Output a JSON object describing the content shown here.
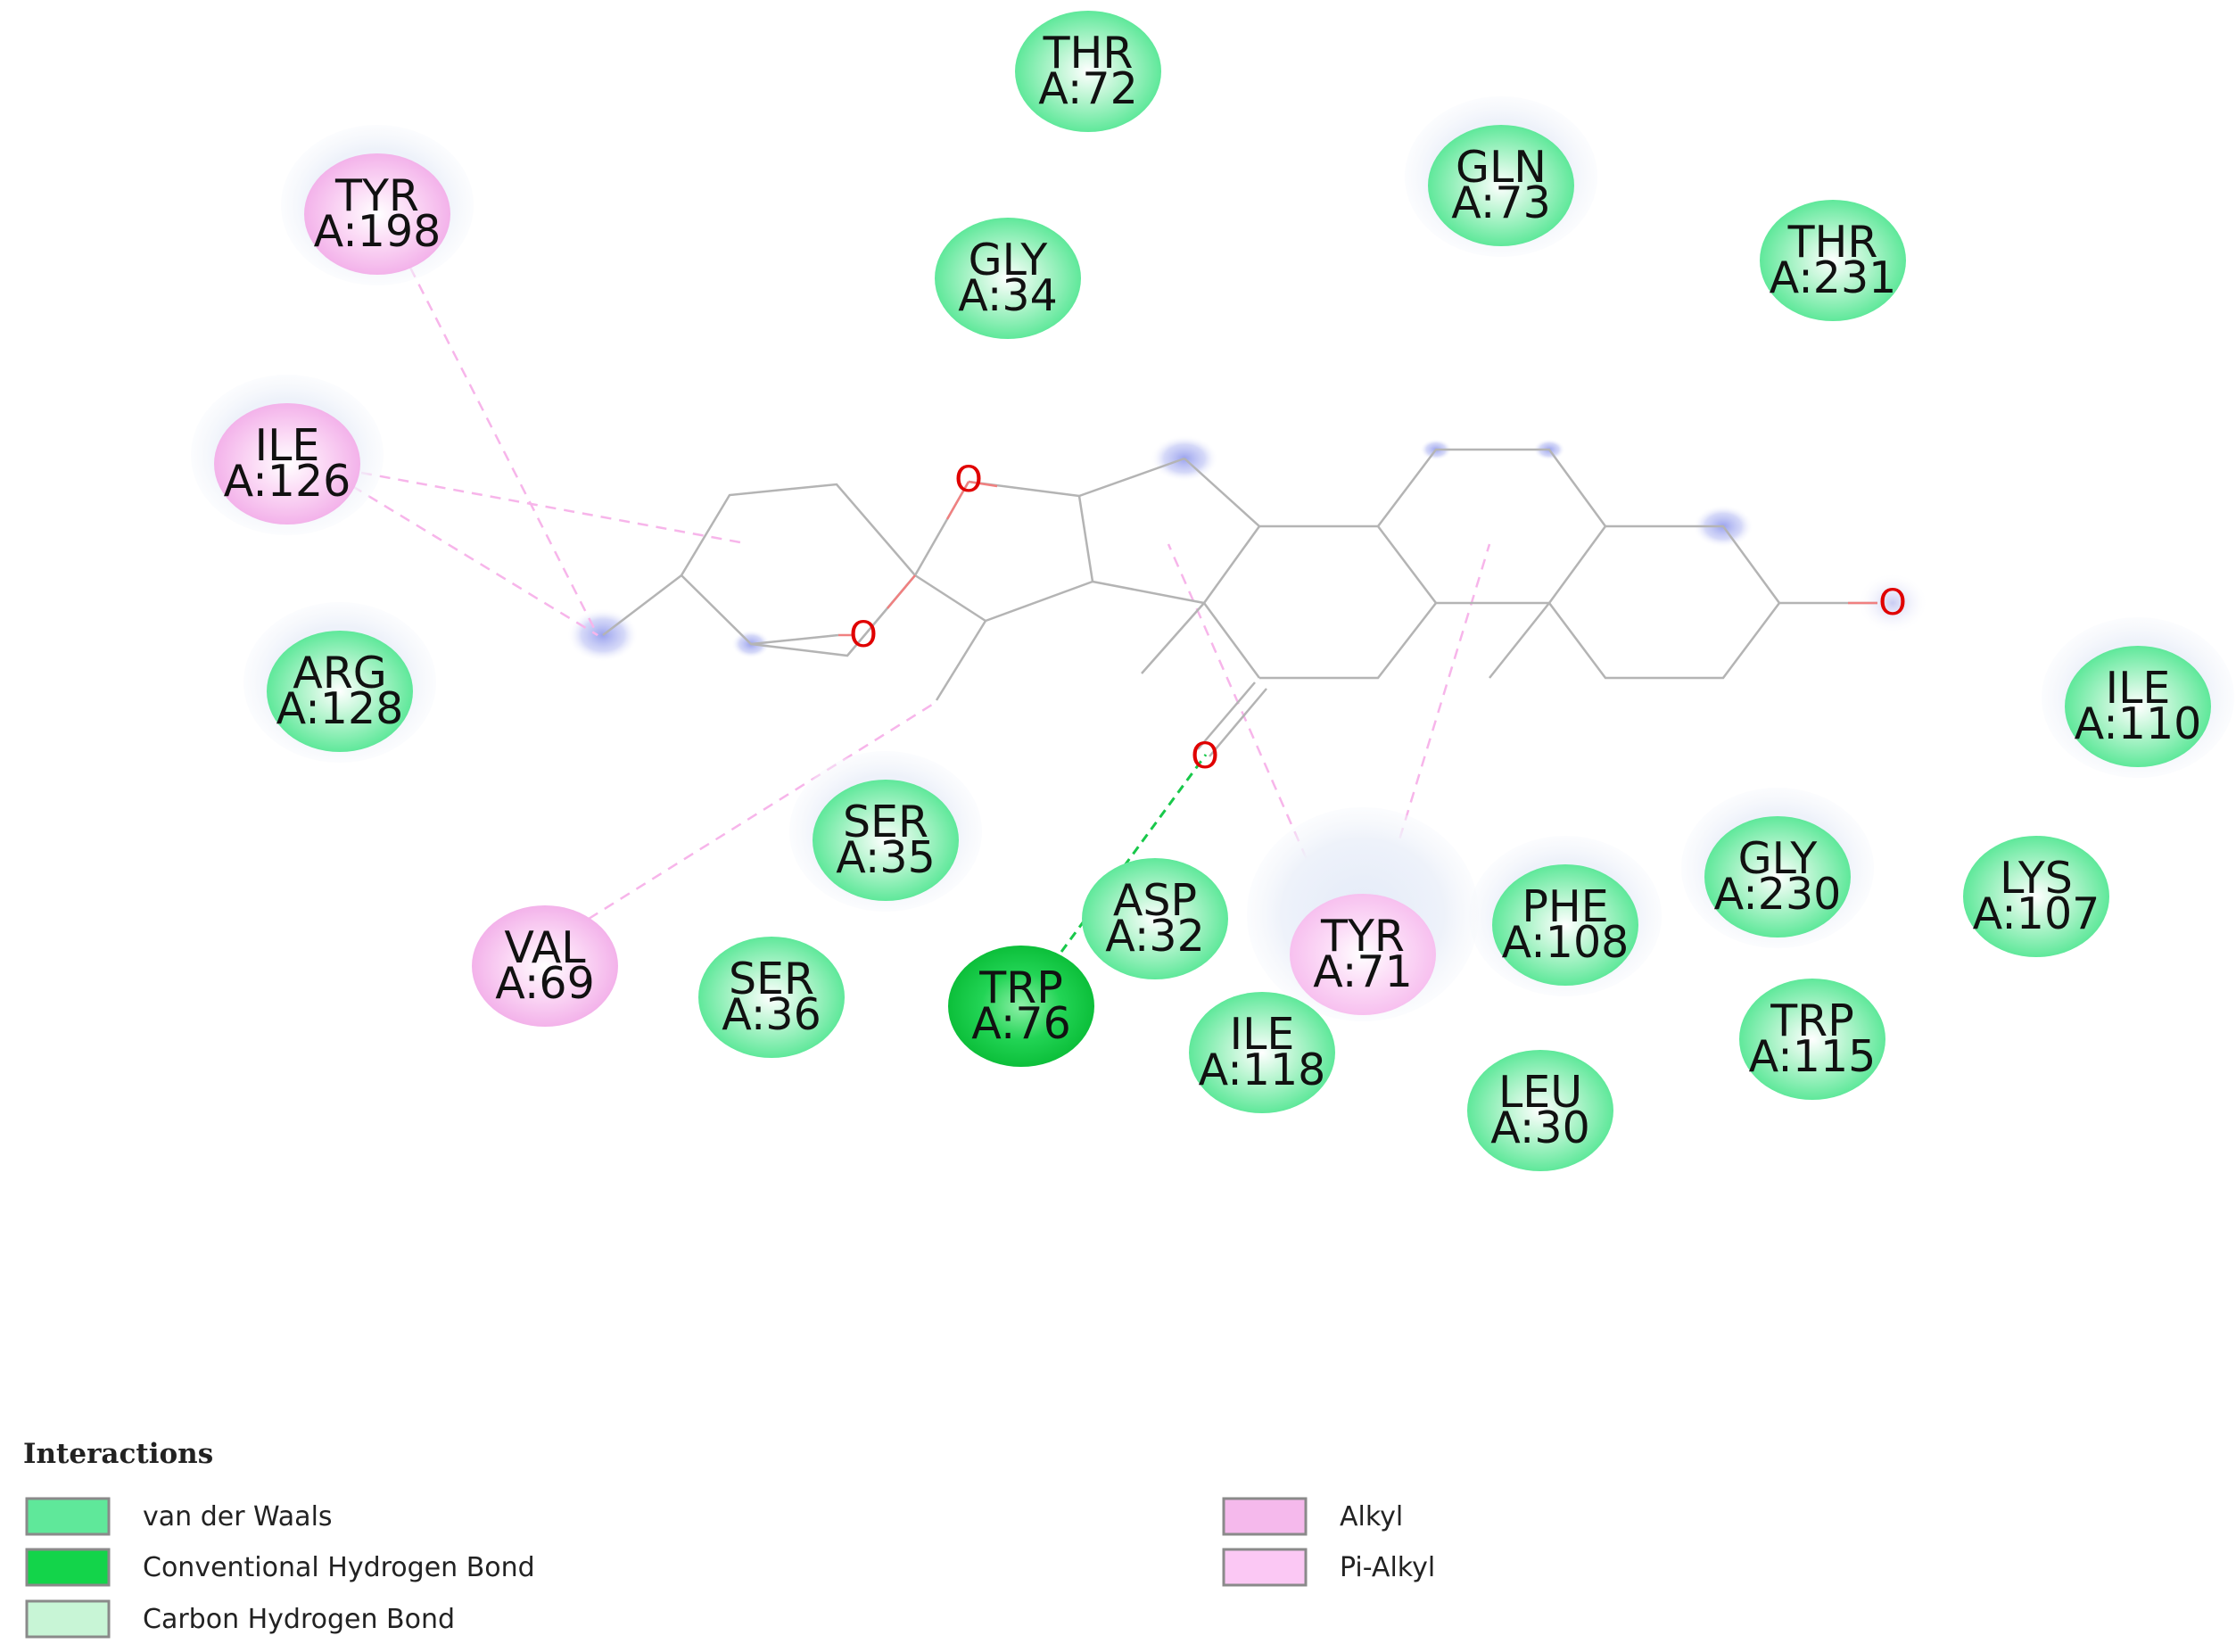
{
  "colors": {
    "van_der_waals": "#5fe89a",
    "conventional_hbond": "#13d44a",
    "carbon_hbond": "#c8f5d6",
    "alkyl": "#f5b9ec",
    "pi_alkyl": "#fbc8f4",
    "bond": "#b4b4b4",
    "oxygen": "#e00000",
    "halo": "#e8eefa",
    "solvent_blob": "#a8aef0"
  },
  "residues": [
    {
      "id": "thr72",
      "name": "THR",
      "num": "A:72",
      "type": "van_der_waals",
      "halo": false
    },
    {
      "id": "gln73",
      "name": "GLN",
      "num": "A:73",
      "type": "van_der_waals",
      "halo": true
    },
    {
      "id": "thr231",
      "name": "THR",
      "num": "A:231",
      "type": "van_der_waals",
      "halo": false
    },
    {
      "id": "tyr198",
      "name": "TYR",
      "num": "A:198",
      "type": "alkyl",
      "halo": true
    },
    {
      "id": "gly34",
      "name": "GLY",
      "num": "A:34",
      "type": "van_der_waals",
      "halo": false
    },
    {
      "id": "ile126",
      "name": "ILE",
      "num": "A:126",
      "type": "alkyl",
      "halo": true
    },
    {
      "id": "arg128",
      "name": "ARG",
      "num": "A:128",
      "type": "van_der_waals",
      "halo": true
    },
    {
      "id": "ile110",
      "name": "ILE",
      "num": "A:110",
      "type": "van_der_waals",
      "halo": true
    },
    {
      "id": "ser35",
      "name": "SER",
      "num": "A:35",
      "type": "van_der_waals",
      "halo": true
    },
    {
      "id": "gly230",
      "name": "GLY",
      "num": "A:230",
      "type": "van_der_waals",
      "halo": true
    },
    {
      "id": "lys107",
      "name": "LYS",
      "num": "A:107",
      "type": "van_der_waals",
      "halo": false
    },
    {
      "id": "asp32",
      "name": "ASP",
      "num": "A:32",
      "type": "van_der_waals",
      "halo": false
    },
    {
      "id": "phe108",
      "name": "PHE",
      "num": "A:108",
      "type": "van_der_waals",
      "halo": true
    },
    {
      "id": "tyr71",
      "name": "TYR",
      "num": "A:71",
      "type": "pi_alkyl",
      "halo": true
    },
    {
      "id": "val69",
      "name": "VAL",
      "num": "A:69",
      "type": "alkyl",
      "halo": false
    },
    {
      "id": "ser36",
      "name": "SER",
      "num": "A:36",
      "type": "van_der_waals",
      "halo": false
    },
    {
      "id": "trp76",
      "name": "TRP",
      "num": "A:76",
      "type": "conventional_hbond",
      "halo": false
    },
    {
      "id": "ile118",
      "name": "ILE",
      "num": "A:118",
      "type": "van_der_waals",
      "halo": false
    },
    {
      "id": "trp115",
      "name": "TRP",
      "num": "A:115",
      "type": "van_der_waals",
      "halo": false
    },
    {
      "id": "leu30",
      "name": "LEU",
      "num": "A:30",
      "type": "van_der_waals",
      "halo": false
    }
  ],
  "oxygen_label": "O",
  "legend": {
    "title": "Interactions",
    "items": [
      {
        "label": "van der Waals",
        "type": "van_der_waals"
      },
      {
        "label": "Conventional Hydrogen Bond",
        "type": "conventional_hbond"
      },
      {
        "label": "Carbon Hydrogen Bond",
        "type": "carbon_hbond"
      },
      {
        "label": "Alkyl",
        "type": "alkyl"
      },
      {
        "label": "Pi-Alkyl",
        "type": "pi_alkyl"
      }
    ]
  }
}
